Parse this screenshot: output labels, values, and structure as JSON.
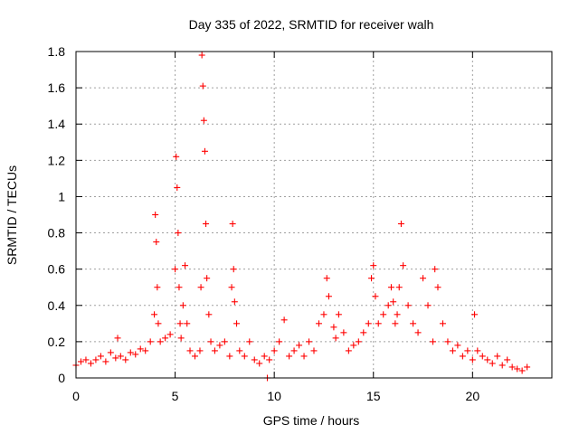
{
  "chart_data": {
    "type": "scatter",
    "title": "Day 335 of 2022, SRMTID for receiver walh",
    "xlabel": "GPS time / hours",
    "ylabel": "SRMTID / TECUs",
    "xlim": [
      0,
      24
    ],
    "ylim": [
      0,
      1.8
    ],
    "x_ticks": [
      0,
      5,
      10,
      15,
      20
    ],
    "x_tick_labels": [
      "0",
      "5",
      "10",
      "15",
      "20"
    ],
    "y_ticks": [
      0,
      0.2,
      0.4,
      0.6,
      0.8,
      1.0,
      1.2,
      1.4,
      1.6,
      1.8
    ],
    "y_tick_labels": [
      "0",
      "0.2",
      "0.4",
      "0.6",
      "0.8",
      "1",
      "1.2",
      "1.4",
      "1.6",
      "1.8"
    ],
    "grid": true,
    "marker": "+",
    "series": [
      {
        "name": "SRMTID",
        "color": "#ff0000",
        "x": [
          0.0,
          0.25,
          0.5,
          0.75,
          1.0,
          1.25,
          1.5,
          1.75,
          2.0,
          2.1,
          2.25,
          2.5,
          2.75,
          3.0,
          3.25,
          3.5,
          3.75,
          3.95,
          4.0,
          4.05,
          4.1,
          4.15,
          4.25,
          4.5,
          4.75,
          5.0,
          5.05,
          5.1,
          5.15,
          5.2,
          5.25,
          5.3,
          5.4,
          5.5,
          5.6,
          5.75,
          6.0,
          6.25,
          6.3,
          6.35,
          6.4,
          6.45,
          6.5,
          6.55,
          6.6,
          6.7,
          6.8,
          7.0,
          7.25,
          7.5,
          7.75,
          7.85,
          7.9,
          7.95,
          8.0,
          8.1,
          8.25,
          8.5,
          8.75,
          9.0,
          9.25,
          9.5,
          9.65,
          9.75,
          10.0,
          10.25,
          10.5,
          10.75,
          11.0,
          11.25,
          11.5,
          11.75,
          12.0,
          12.25,
          12.5,
          12.65,
          12.75,
          13.0,
          13.1,
          13.25,
          13.5,
          13.75,
          14.0,
          14.25,
          14.5,
          14.75,
          14.9,
          15.0,
          15.1,
          15.25,
          15.5,
          15.75,
          15.9,
          16.0,
          16.1,
          16.2,
          16.3,
          16.4,
          16.5,
          16.75,
          17.0,
          17.25,
          17.5,
          17.75,
          18.0,
          18.1,
          18.25,
          18.5,
          18.75,
          19.0,
          19.25,
          19.5,
          19.75,
          20.0,
          20.1,
          20.25,
          20.5,
          20.75,
          21.0,
          21.25,
          21.5,
          21.75,
          22.0,
          22.25,
          22.5,
          22.75
        ],
        "y": [
          0.07,
          0.09,
          0.1,
          0.08,
          0.1,
          0.12,
          0.09,
          0.14,
          0.11,
          0.22,
          0.12,
          0.1,
          0.14,
          0.13,
          0.16,
          0.15,
          0.2,
          0.35,
          0.9,
          0.75,
          0.5,
          0.3,
          0.2,
          0.22,
          0.24,
          0.6,
          1.22,
          1.05,
          0.8,
          0.5,
          0.3,
          0.22,
          0.4,
          0.62,
          0.3,
          0.15,
          0.12,
          0.15,
          0.5,
          1.78,
          1.61,
          1.42,
          1.25,
          0.85,
          0.55,
          0.35,
          0.2,
          0.15,
          0.18,
          0.2,
          0.12,
          0.5,
          0.85,
          0.6,
          0.42,
          0.3,
          0.15,
          0.12,
          0.2,
          0.1,
          0.08,
          0.12,
          0.0,
          0.1,
          0.15,
          0.2,
          0.32,
          0.12,
          0.15,
          0.18,
          0.12,
          0.2,
          0.15,
          0.3,
          0.35,
          0.55,
          0.45,
          0.28,
          0.22,
          0.35,
          0.25,
          0.15,
          0.18,
          0.2,
          0.25,
          0.3,
          0.55,
          0.62,
          0.45,
          0.3,
          0.35,
          0.4,
          0.5,
          0.42,
          0.3,
          0.35,
          0.5,
          0.85,
          0.62,
          0.4,
          0.3,
          0.25,
          0.55,
          0.4,
          0.2,
          0.6,
          0.5,
          0.3,
          0.2,
          0.15,
          0.18,
          0.12,
          0.15,
          0.1,
          0.35,
          0.15,
          0.12,
          0.1,
          0.08,
          0.12,
          0.07,
          0.1,
          0.06,
          0.05,
          0.04,
          0.06
        ]
      }
    ]
  }
}
